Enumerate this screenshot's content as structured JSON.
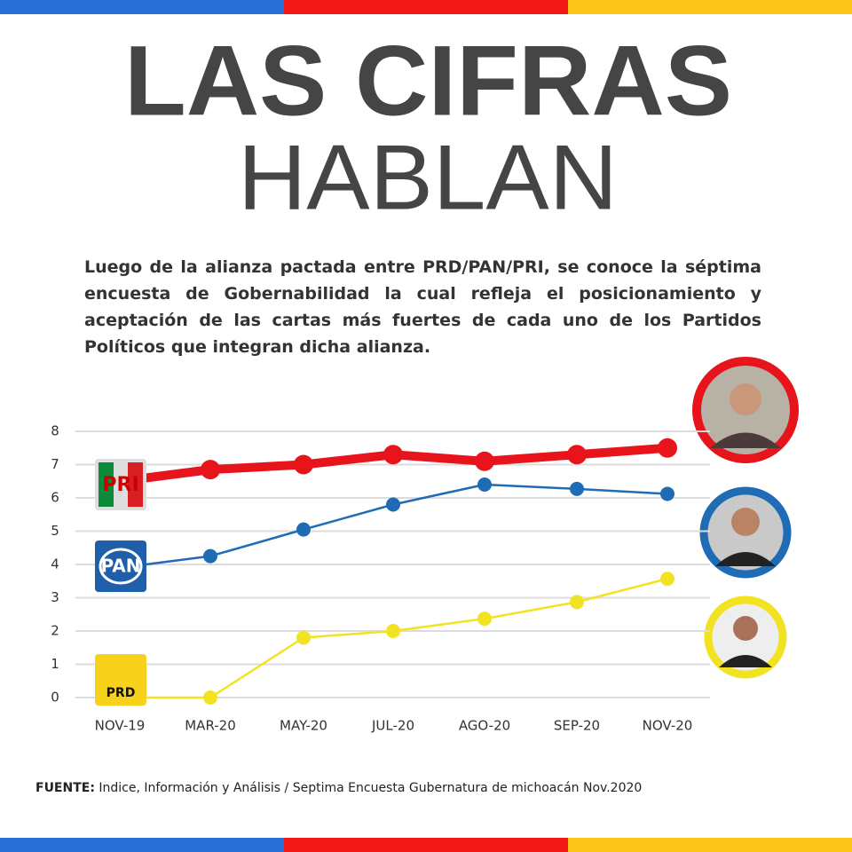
{
  "header": {
    "title_line1": "LAS CIFRAS",
    "title_line2": "HABLAN",
    "intro": "Luego de la alianza pactada entre PRD/PAN/PRI, se conoce la séptima encuesta de Gobernabilidad la cual refleja el posicionamiento y aceptación de las cartas más fuertes de cada uno de los Partidos Políticos que integran dicha alianza."
  },
  "chart_data": {
    "type": "line",
    "categories": [
      "NOV-19",
      "MAR-20",
      "MAY-20",
      "JUL-20",
      "AGO-20",
      "SEP-20",
      "NOV-20"
    ],
    "series": [
      {
        "name": "PRI",
        "color": "#e8141b",
        "values": [
          6.5,
          6.85,
          7.0,
          7.3,
          7.1,
          7.3,
          7.5
        ]
      },
      {
        "name": "PAN",
        "color": "#1f6cb5",
        "values": [
          3.9,
          4.25,
          5.05,
          5.8,
          6.4,
          6.27,
          6.12
        ]
      },
      {
        "name": "PRD",
        "color": "#f2e322",
        "values": [
          0,
          0,
          1.8,
          2.0,
          2.37,
          2.87,
          3.57
        ]
      }
    ],
    "ylim": [
      0,
      8
    ],
    "yticks": [
      0,
      1,
      2,
      3,
      4,
      5,
      6,
      7,
      8
    ],
    "grid": true
  },
  "footer": {
    "source_label": "FUENTE:",
    "source_text": "Indice, Información y Análisis / Septima Encuesta Gubernatura de michoacán Nov.2020"
  }
}
